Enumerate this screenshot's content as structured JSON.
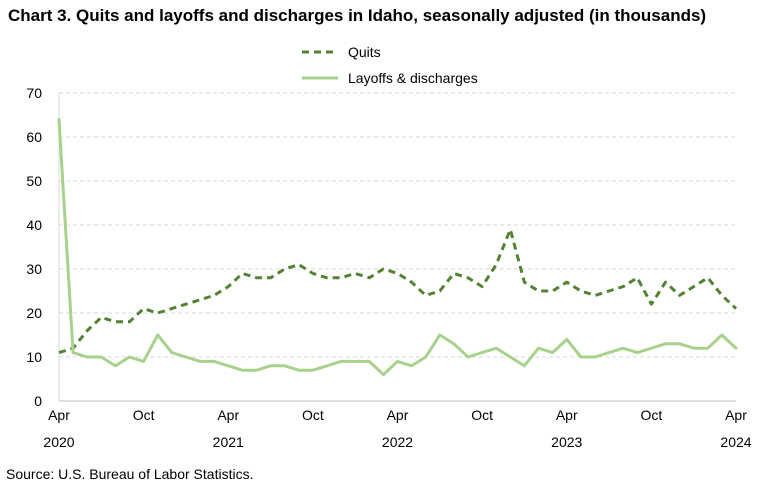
{
  "page": {
    "title": "Chart 3. Quits and layoffs and discharges in Idaho, seasonally adjusted (in thousands)",
    "source": "Source: U.S. Bureau of Labor Statistics."
  },
  "chart_data": {
    "type": "line",
    "title": "Chart 3. Quits and layoffs and discharges in Idaho, seasonally adjusted (in thousands)",
    "xlabel": "",
    "ylabel": "",
    "ylim": [
      0,
      70
    ],
    "yticks": [
      0,
      10,
      20,
      30,
      40,
      50,
      60,
      70
    ],
    "grid": "horizontal dashed",
    "legend_position": "top",
    "x": [
      "2020-04",
      "2020-05",
      "2020-06",
      "2020-07",
      "2020-08",
      "2020-09",
      "2020-10",
      "2020-11",
      "2020-12",
      "2021-01",
      "2021-02",
      "2021-03",
      "2021-04",
      "2021-05",
      "2021-06",
      "2021-07",
      "2021-08",
      "2021-09",
      "2021-10",
      "2021-11",
      "2021-12",
      "2022-01",
      "2022-02",
      "2022-03",
      "2022-04",
      "2022-05",
      "2022-06",
      "2022-07",
      "2022-08",
      "2022-09",
      "2022-10",
      "2022-11",
      "2022-12",
      "2023-01",
      "2023-02",
      "2023-03",
      "2023-04",
      "2023-05",
      "2023-06",
      "2023-07",
      "2023-08",
      "2023-09",
      "2023-10",
      "2023-11",
      "2023-12",
      "2024-01",
      "2024-02",
      "2024-03",
      "2024-04"
    ],
    "x_tick_labels": [
      {
        "month": "Apr",
        "year": "2020",
        "index": 0
      },
      {
        "month": "Oct",
        "year": "",
        "index": 6
      },
      {
        "month": "Apr",
        "year": "2021",
        "index": 12
      },
      {
        "month": "Oct",
        "year": "",
        "index": 18
      },
      {
        "month": "Apr",
        "year": "2022",
        "index": 24
      },
      {
        "month": "Oct",
        "year": "",
        "index": 30
      },
      {
        "month": "Apr",
        "year": "2023",
        "index": 36
      },
      {
        "month": "Oct",
        "year": "",
        "index": 42
      },
      {
        "month": "Apr",
        "year": "2024",
        "index": 48
      }
    ],
    "series": [
      {
        "name": "Quits",
        "style": "dashed",
        "color": "#548235",
        "values": [
          11,
          12,
          16,
          19,
          18,
          18,
          21,
          20,
          21,
          22,
          23,
          24,
          26,
          29,
          28,
          28,
          30,
          31,
          29,
          28,
          28,
          29,
          28,
          30,
          29,
          27,
          24,
          25,
          29,
          28,
          26,
          31,
          39,
          27,
          25,
          25,
          27,
          25,
          24,
          25,
          26,
          28,
          22,
          27,
          24,
          26,
          28,
          24,
          21
        ]
      },
      {
        "name": "Layoffs & discharges",
        "style": "solid",
        "color": "#a9d18e",
        "values": [
          64,
          11,
          10,
          10,
          8,
          10,
          9,
          15,
          11,
          10,
          9,
          9,
          8,
          7,
          7,
          8,
          8,
          7,
          7,
          8,
          9,
          9,
          9,
          6,
          9,
          8,
          10,
          15,
          13,
          10,
          11,
          12,
          10,
          8,
          12,
          11,
          14,
          10,
          10,
          11,
          12,
          11,
          12,
          13,
          13,
          12,
          12,
          15,
          12
        ]
      }
    ]
  }
}
